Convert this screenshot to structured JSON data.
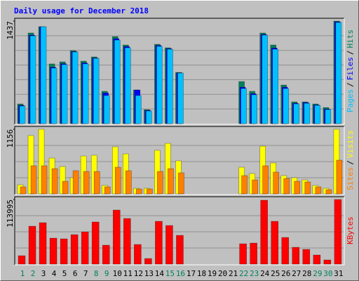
{
  "chart_data": [
    {
      "type": "bar",
      "title": "Daily usage for December 2018",
      "legend_separator": "/",
      "ylim": [
        0,
        1437
      ],
      "yticks": [
        1437
      ],
      "series": [
        {
          "name": "Hits",
          "color": "#00805c",
          "values": [
            276,
            1270,
            1358,
            837,
            866,
            1024,
            876,
            935,
            453,
            1220,
            1102,
            472,
            197,
            1112,
            1063,
            718,
            0,
            0,
            0,
            0,
            0,
            590,
            453,
            1270,
            1102,
            541,
            305,
            305,
            276,
            226,
            1437
          ]
        },
        {
          "name": "Files",
          "color": "#0000ff",
          "values": [
            256,
            1240,
            1358,
            790,
            840,
            1010,
            850,
            920,
            430,
            1190,
            1080,
            472,
            185,
            1095,
            1050,
            712,
            0,
            0,
            0,
            0,
            0,
            510,
            420,
            1250,
            1060,
            510,
            285,
            295,
            262,
            205,
            1427
          ]
        },
        {
          "name": "Pages",
          "color": "#00c0ff",
          "values": [
            246,
            1230,
            1358,
            778,
            827,
            1004,
            837,
            915,
            394,
            1171,
            1063,
            394,
            177,
            1083,
            1043,
            709,
            0,
            0,
            0,
            0,
            0,
            492,
            404,
            1240,
            1043,
            492,
            276,
            285,
            256,
            197,
            1417
          ]
        }
      ]
    },
    {
      "type": "bar",
      "ylim": [
        0,
        1156
      ],
      "yticks": [
        1156
      ],
      "series": [
        {
          "name": "Visits",
          "color": "#ffff00",
          "values": [
            163,
            1043,
            1156,
            641,
            490,
            289,
            678,
            691,
            151,
            842,
            716,
            100,
            100,
            779,
            905,
            591,
            0,
            0,
            0,
            0,
            0,
            477,
            364,
            854,
            553,
            327,
            289,
            251,
            151,
            100,
            1156
          ]
        },
        {
          "name": "Sites",
          "color": "#ff8000",
          "values": [
            126,
            503,
            503,
            452,
            226,
            415,
            402,
            402,
            126,
            477,
            415,
            88,
            88,
            402,
            452,
            377,
            0,
            0,
            0,
            0,
            0,
            327,
            251,
            503,
            390,
            276,
            226,
            214,
            126,
            75,
            603
          ]
        }
      ]
    },
    {
      "type": "bar",
      "ylim": [
        0,
        113995
      ],
      "yticks": [
        113995
      ],
      "categories": [
        "1",
        "2",
        "3",
        "4",
        "5",
        "6",
        "7",
        "8",
        "9",
        "10",
        "11",
        "12",
        "13",
        "14",
        "15",
        "16",
        "17",
        "18",
        "19",
        "20",
        "21",
        "22",
        "23",
        "24",
        "25",
        "26",
        "27",
        "28",
        "29",
        "30",
        "31"
      ],
      "label_colors": [
        "#00805c",
        "#00805c",
        "#000000",
        "#000000",
        "#000000",
        "#000000",
        "#000000",
        "#00805c",
        "#00805c",
        "#000000",
        "#000000",
        "#000000",
        "#000000",
        "#000000",
        "#00805c",
        "#00805c",
        "#000000",
        "#000000",
        "#000000",
        "#000000",
        "#000000",
        "#00805c",
        "#00805c",
        "#000000",
        "#000000",
        "#000000",
        "#000000",
        "#000000",
        "#00805c",
        "#00805c",
        "#000000"
      ],
      "series": [
        {
          "name": "KBytes",
          "color": "#ff0000",
          "values": [
            14869,
            66910,
            73106,
            45843,
            44604,
            52039,
            56995,
            74345,
            33452,
            95409,
            80540,
            34691,
            9913,
            75584,
            68149,
            50800,
            0,
            0,
            0,
            0,
            0,
            35930,
            37169,
            112756,
            75584,
            47082,
            29738,
            26021,
            16108,
            7435,
            113995
          ]
        }
      ]
    }
  ]
}
